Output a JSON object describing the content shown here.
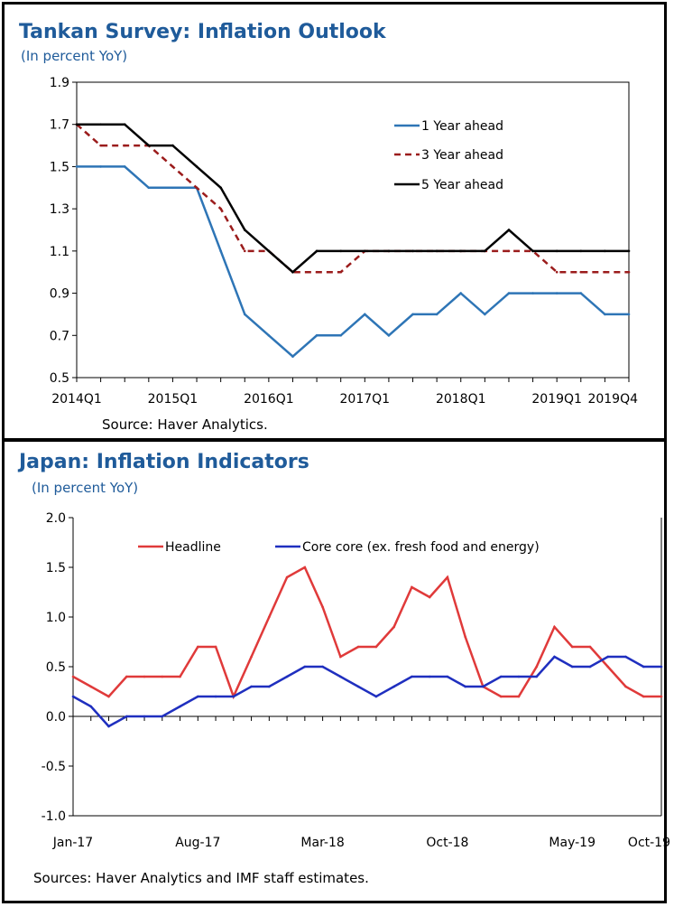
{
  "chart_data": [
    {
      "type": "line",
      "title": "Tankan Survey: Inflation Outlook",
      "subtitle": "(In percent YoY)",
      "source": "Source: Haver Analytics.",
      "x": [
        "2014Q1",
        "2014Q2",
        "2014Q3",
        "2014Q4",
        "2015Q1",
        "2015Q2",
        "2015Q3",
        "2015Q4",
        "2016Q1",
        "2016Q2",
        "2016Q3",
        "2016Q4",
        "2017Q1",
        "2017Q2",
        "2017Q3",
        "2017Q4",
        "2018Q1",
        "2018Q2",
        "2018Q3",
        "2018Q4",
        "2019Q1",
        "2019Q2",
        "2019Q3",
        "2019Q4"
      ],
      "x_tick_labels": [
        "2014Q1",
        "2015Q1",
        "2016Q1",
        "2017Q1",
        "2018Q1",
        "2019Q1",
        "2019Q4"
      ],
      "y_tick_labels": [
        "1.9",
        "1.7",
        "1.5",
        "1.3",
        "1.1",
        "0.9",
        "0.7",
        "0.5"
      ],
      "ylim": [
        0.5,
        1.9
      ],
      "grid": false,
      "legend_position": "top-right",
      "series": [
        {
          "name": "1 Year ahead",
          "color": "#2e75b6",
          "dash": "solid",
          "values": [
            1.5,
            1.5,
            1.5,
            1.4,
            1.4,
            1.4,
            1.1,
            0.8,
            0.7,
            0.6,
            0.7,
            0.7,
            0.8,
            0.7,
            0.8,
            0.8,
            0.9,
            0.8,
            0.9,
            0.9,
            0.9,
            0.9,
            0.8,
            0.8
          ]
        },
        {
          "name": "3 Year ahead",
          "color": "#9b1c1c",
          "dash": "dashed",
          "values": [
            1.7,
            1.6,
            1.6,
            1.6,
            1.5,
            1.4,
            1.3,
            1.1,
            1.1,
            1.0,
            1.0,
            1.0,
            1.1,
            1.1,
            1.1,
            1.1,
            1.1,
            1.1,
            1.1,
            1.1,
            1.0,
            1.0,
            1.0,
            1.0
          ]
        },
        {
          "name": "5 Year ahead",
          "color": "#000000",
          "dash": "solid",
          "values": [
            1.7,
            1.7,
            1.7,
            1.6,
            1.6,
            1.5,
            1.4,
            1.2,
            1.1,
            1.0,
            1.1,
            1.1,
            1.1,
            1.1,
            1.1,
            1.1,
            1.1,
            1.1,
            1.2,
            1.1,
            1.1,
            1.1,
            1.1,
            1.1
          ]
        }
      ]
    },
    {
      "type": "line",
      "title": "Japan: Inflation Indicators",
      "subtitle": "(In percent YoY)",
      "source": "Sources: Haver Analytics and IMF staff estimates.",
      "x": [
        "Jan-17",
        "Feb-17",
        "Mar-17",
        "Apr-17",
        "May-17",
        "Jun-17",
        "Jul-17",
        "Aug-17",
        "Sep-17",
        "Oct-17",
        "Nov-17",
        "Dec-17",
        "Jan-18",
        "Feb-18",
        "Mar-18",
        "Apr-18",
        "May-18",
        "Jun-18",
        "Jul-18",
        "Aug-18",
        "Sep-18",
        "Oct-18",
        "Nov-18",
        "Dec-18",
        "Jan-19",
        "Feb-19",
        "Mar-19",
        "Apr-19",
        "May-19",
        "Jun-19",
        "Jul-19",
        "Aug-19",
        "Sep-19",
        "Oct-19"
      ],
      "x_tick_labels": [
        "Jan-17",
        "Aug-17",
        "Mar-18",
        "Oct-18",
        "May-19",
        "Oct-19"
      ],
      "y_tick_labels": [
        "2.0",
        "1.5",
        "1.0",
        "0.5",
        "0.0",
        "-0.5",
        "-1.0"
      ],
      "ylim": [
        -1.0,
        2.0
      ],
      "grid": false,
      "legend_position": "top",
      "series": [
        {
          "name": "Headline",
          "color": "#e03a3a",
          "dash": "solid",
          "values": [
            0.4,
            0.3,
            0.2,
            0.4,
            0.4,
            0.4,
            0.4,
            0.7,
            0.7,
            0.2,
            0.6,
            1.0,
            1.4,
            1.5,
            1.1,
            0.6,
            0.7,
            0.7,
            0.9,
            1.3,
            1.2,
            1.4,
            0.8,
            0.3,
            0.2,
            0.2,
            0.5,
            0.9,
            0.7,
            0.7,
            0.5,
            0.3,
            0.2,
            0.2
          ]
        },
        {
          "name": "Core core (ex. fresh food and energy)",
          "color": "#1f2fbf",
          "dash": "solid",
          "values": [
            0.2,
            0.1,
            -0.1,
            0.0,
            0.0,
            0.0,
            0.1,
            0.2,
            0.2,
            0.2,
            0.3,
            0.3,
            0.4,
            0.5,
            0.5,
            0.4,
            0.3,
            0.2,
            0.3,
            0.4,
            0.4,
            0.4,
            0.3,
            0.3,
            0.4,
            0.4,
            0.4,
            0.6,
            0.5,
            0.5,
            0.6,
            0.6,
            0.5,
            0.5
          ]
        }
      ]
    }
  ]
}
